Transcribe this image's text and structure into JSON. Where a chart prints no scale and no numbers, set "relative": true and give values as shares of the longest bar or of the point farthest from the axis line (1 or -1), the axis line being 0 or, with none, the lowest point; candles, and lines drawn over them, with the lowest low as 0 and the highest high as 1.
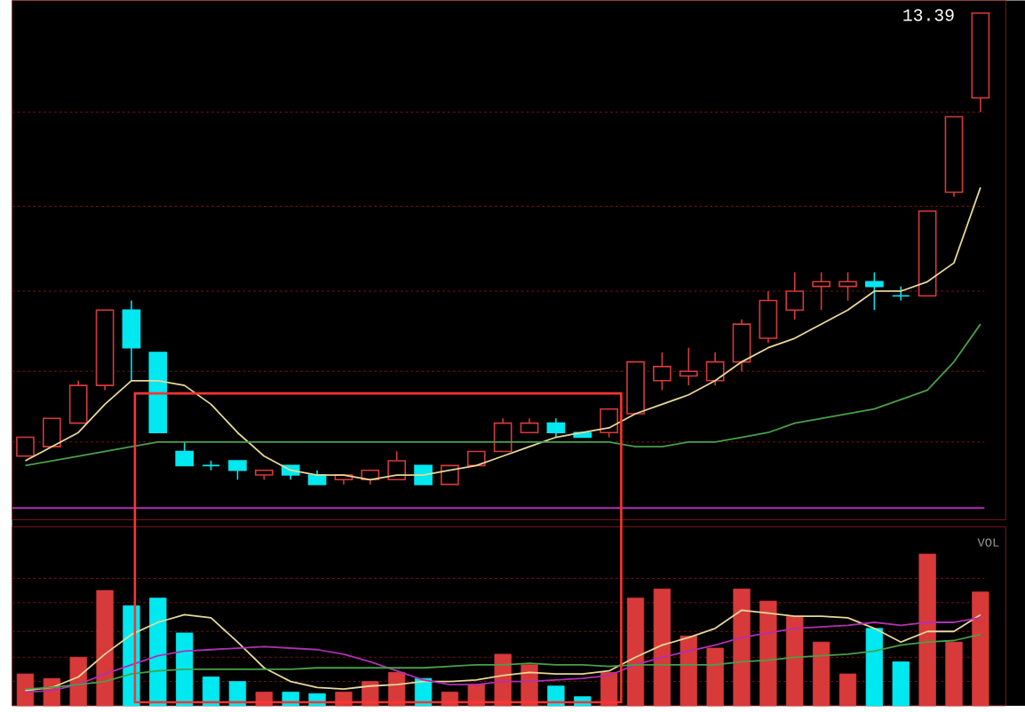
{
  "chart_data": [
    {
      "type": "candlestick",
      "relative": true,
      "categories": [
        null,
        null,
        null,
        null,
        null,
        null,
        null,
        null,
        null,
        null,
        null,
        null,
        null,
        null,
        null,
        null,
        null,
        null,
        null,
        null,
        null,
        null,
        null,
        null,
        null,
        null,
        null,
        null,
        null,
        null,
        null,
        null,
        null,
        null,
        null,
        null,
        null
      ],
      "ohlc": [
        [
          0.06,
          0.1,
          0.06,
          0.1
        ],
        [
          0.08,
          0.14,
          0.08,
          0.14
        ],
        [
          0.13,
          0.22,
          0.13,
          0.21
        ],
        [
          0.21,
          0.37,
          0.2,
          0.37
        ],
        [
          0.37,
          0.39,
          0.22,
          0.29
        ],
        [
          0.28,
          0.28,
          0.11,
          0.11
        ],
        [
          0.07,
          0.09,
          0.04,
          0.04
        ],
        [
          0.04,
          0.05,
          0.03,
          0.04
        ],
        [
          0.05,
          0.05,
          0.01,
          0.03
        ],
        [
          0.02,
          0.03,
          0.01,
          0.03
        ],
        [
          0.04,
          0.04,
          0.01,
          0.02
        ],
        [
          0.02,
          0.03,
          0,
          0
        ],
        [
          0.01,
          0.02,
          0,
          0.02
        ],
        [
          0.01,
          0.03,
          0,
          0.03
        ],
        [
          0.01,
          0.07,
          0.01,
          0.05
        ],
        [
          0.04,
          0.04,
          0,
          0
        ],
        [
          0,
          0.04,
          0,
          0.04
        ],
        [
          0.04,
          0.07,
          0.04,
          0.07
        ],
        [
          0.07,
          0.14,
          0.07,
          0.13
        ],
        [
          0.11,
          0.14,
          0.11,
          0.13
        ],
        [
          0.13,
          0.14,
          0.1,
          0.11
        ],
        [
          0.11,
          0.11,
          0.1,
          0.1
        ],
        [
          0.11,
          0.16,
          0.1,
          0.16
        ],
        [
          0.15,
          0.26,
          0.15,
          0.26
        ],
        [
          0.22,
          0.28,
          0.2,
          0.25
        ],
        [
          0.23,
          0.29,
          0.21,
          0.24
        ],
        [
          0.22,
          0.28,
          0.21,
          0.26
        ],
        [
          0.26,
          0.35,
          0.24,
          0.34
        ],
        [
          0.31,
          0.41,
          0.3,
          0.39
        ],
        [
          0.37,
          0.45,
          0.35,
          0.41
        ],
        [
          0.42,
          0.45,
          0.37,
          0.43
        ],
        [
          0.42,
          0.45,
          0.39,
          0.43
        ],
        [
          0.43,
          0.45,
          0.37,
          0.42
        ],
        [
          0.4,
          0.42,
          0.39,
          0.4
        ],
        [
          0.4,
          0.58,
          0.4,
          0.58
        ],
        [
          0.62,
          0.78,
          0.61,
          0.78
        ],
        [
          0.82,
          1.0,
          0.79,
          1.0
        ]
      ],
      "colors": [
        "#d83a3a",
        "#d83a3a",
        "#d83a3a",
        "#d83a3a",
        "#00e8f0",
        "#00e8f0",
        "#00e8f0",
        "#00e8f0",
        "#00e8f0",
        "#d83a3a",
        "#00e8f0",
        "#00e8f0",
        "#d83a3a",
        "#d83a3a",
        "#d83a3a",
        "#00e8f0",
        "#d83a3a",
        "#d83a3a",
        "#d83a3a",
        "#d83a3a",
        "#00e8f0",
        "#00e8f0",
        "#d83a3a",
        "#d83a3a",
        "#d83a3a",
        "#d83a3a",
        "#d83a3a",
        "#d83a3a",
        "#d83a3a",
        "#d83a3a",
        "#d83a3a",
        "#d83a3a",
        "#00e8f0",
        "#00e8f0",
        "#d83a3a",
        "#d83a3a",
        "#d83a3a"
      ],
      "series": [
        {
          "type": "line",
          "color": "#e8d898",
          "values": [
            0.05,
            0.08,
            0.11,
            0.17,
            0.22,
            0.22,
            0.21,
            0.17,
            0.11,
            0.06,
            0.03,
            0.02,
            0.02,
            0.01,
            0.02,
            0.02,
            0.03,
            0.04,
            0.06,
            0.08,
            0.1,
            0.11,
            0.12,
            0.15,
            0.17,
            0.19,
            0.22,
            0.26,
            0.29,
            0.31,
            0.34,
            0.37,
            0.41,
            0.41,
            0.43,
            0.47,
            0.63
          ]
        },
        {
          "type": "line",
          "color": "#48a048",
          "values": [
            0.04,
            0.05,
            0.06,
            0.07,
            0.08,
            0.09,
            0.09,
            0.09,
            0.09,
            0.09,
            0.09,
            0.09,
            0.09,
            0.09,
            0.09,
            0.09,
            0.09,
            0.09,
            0.09,
            0.09,
            0.09,
            0.09,
            0.09,
            0.08,
            0.08,
            0.09,
            0.09,
            0.1,
            0.11,
            0.13,
            0.14,
            0.15,
            0.16,
            0.18,
            0.2,
            0.26,
            0.34
          ]
        }
      ],
      "ref_lines": [
        {
          "axis": "y",
          "value": -0.05,
          "color": "#b030b0"
        },
        {
          "axis": "y",
          "value": 0.09,
          "color": "#7a1414",
          "line_style": "dashed"
        },
        {
          "axis": "y",
          "value": 0.24,
          "color": "#7a1414",
          "line_style": "dashed"
        },
        {
          "axis": "y",
          "value": 0.41,
          "color": "#7a1414",
          "line_style": "dashed"
        },
        {
          "axis": "y",
          "value": 0.59,
          "color": "#7a1414",
          "line_style": "dashed"
        },
        {
          "axis": "y",
          "value": 0.79,
          "color": "#7a1414",
          "line_style": "dashed"
        }
      ],
      "annotations": [
        "13.39"
      ]
    },
    {
      "type": "bar",
      "relative": true,
      "categories": [
        null,
        null,
        null,
        null,
        null,
        null,
        null,
        null,
        null,
        null,
        null,
        null,
        null,
        null,
        null,
        null,
        null,
        null,
        null,
        null,
        null,
        null,
        null,
        null,
        null,
        null,
        null,
        null,
        null,
        null,
        null,
        null,
        null,
        null,
        null,
        null,
        null
      ],
      "series": [
        {
          "values": [
            0.21,
            0.18,
            0.32,
            0.76,
            0.66,
            0.71,
            0.48,
            0.19,
            0.16,
            0.09,
            0.09,
            0.08,
            0.09,
            0.16,
            0.22,
            0.18,
            0.09,
            0.14,
            0.34,
            0.27,
            0.13,
            0.06,
            0.22,
            0.71,
            0.77,
            0.46,
            0.38,
            0.77,
            0.69,
            0.59,
            0.42,
            0.21,
            0.51,
            0.29,
            1.0,
            0.42,
            0.75
          ],
          "colors": [
            "#d83a3a",
            "#d83a3a",
            "#d83a3a",
            "#d83a3a",
            "#00e8f0",
            "#00e8f0",
            "#00e8f0",
            "#00e8f0",
            "#00e8f0",
            "#d83a3a",
            "#00e8f0",
            "#00e8f0",
            "#d83a3a",
            "#d83a3a",
            "#d83a3a",
            "#00e8f0",
            "#d83a3a",
            "#d83a3a",
            "#d83a3a",
            "#d83a3a",
            "#00e8f0",
            "#00e8f0",
            "#d83a3a",
            "#d83a3a",
            "#d83a3a",
            "#d83a3a",
            "#d83a3a",
            "#d83a3a",
            "#d83a3a",
            "#d83a3a",
            "#d83a3a",
            "#d83a3a",
            "#00e8f0",
            "#00e8f0",
            "#d83a3a",
            "#d83a3a",
            "#d83a3a"
          ]
        },
        {
          "type": "line",
          "color": "#e8d898",
          "values": [
            0.1,
            0.12,
            0.19,
            0.34,
            0.47,
            0.55,
            0.6,
            0.58,
            0.42,
            0.25,
            0.16,
            0.12,
            0.11,
            0.13,
            0.14,
            0.16,
            0.16,
            0.17,
            0.2,
            0.22,
            0.21,
            0.21,
            0.23,
            0.32,
            0.4,
            0.45,
            0.51,
            0.63,
            0.61,
            0.59,
            0.59,
            0.58,
            0.51,
            0.42,
            0.49,
            0.49,
            0.6
          ]
        },
        {
          "type": "line",
          "color": "#b030b0",
          "values": [
            0.09,
            0.1,
            0.14,
            0.21,
            0.27,
            0.33,
            0.36,
            0.37,
            0.38,
            0.39,
            0.38,
            0.37,
            0.34,
            0.29,
            0.23,
            0.17,
            0.14,
            0.14,
            0.16,
            0.16,
            0.17,
            0.18,
            0.2,
            0.27,
            0.32,
            0.36,
            0.4,
            0.45,
            0.48,
            0.51,
            0.52,
            0.53,
            0.55,
            0.53,
            0.55,
            0.55,
            0.58
          ]
        },
        {
          "type": "line",
          "color": "#48a048",
          "values": [
            0.11,
            0.12,
            0.14,
            0.16,
            0.21,
            0.23,
            0.24,
            0.24,
            0.24,
            0.24,
            0.24,
            0.25,
            0.25,
            0.25,
            0.25,
            0.25,
            0.26,
            0.27,
            0.27,
            0.28,
            0.27,
            0.27,
            0.26,
            0.27,
            0.27,
            0.27,
            0.27,
            0.29,
            0.3,
            0.32,
            0.33,
            0.34,
            0.36,
            0.4,
            0.42,
            0.43,
            0.47
          ]
        }
      ],
      "ref_lines": [
        {
          "axis": "y",
          "value": 0.16,
          "color": "#7a1414",
          "line_style": "dashed"
        },
        {
          "axis": "y",
          "value": 0.32,
          "color": "#7a1414",
          "line_style": "dashed"
        },
        {
          "axis": "y",
          "value": 0.49,
          "color": "#7a1414",
          "line_style": "dashed"
        },
        {
          "axis": "y",
          "value": 0.68,
          "color": "#7a1414",
          "line_style": "dashed"
        },
        {
          "axis": "y",
          "value": 0.84,
          "color": "#7a1414",
          "line_style": "dashed"
        }
      ],
      "annotations": [
        "VOL"
      ]
    }
  ]
}
